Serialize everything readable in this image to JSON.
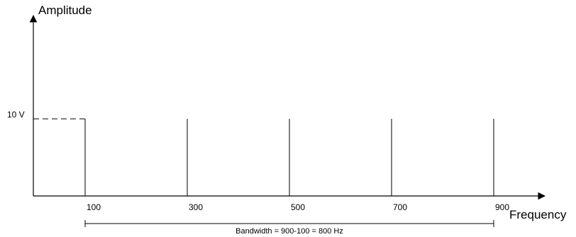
{
  "chart_data": {
    "type": "bar",
    "xlabel": "Frequency",
    "ylabel": "Amplitude",
    "x": [
      100,
      300,
      500,
      700,
      900
    ],
    "x_tick_labels": [
      "100",
      "300",
      "500",
      "700",
      "900"
    ],
    "values": [
      10,
      10,
      10,
      10,
      10
    ],
    "amplitude_label": "10 V",
    "bandwidth_label": "Bandwidth = 900-100 = 800 Hz",
    "bandwidth_range": [
      100,
      900
    ],
    "grid": false
  }
}
